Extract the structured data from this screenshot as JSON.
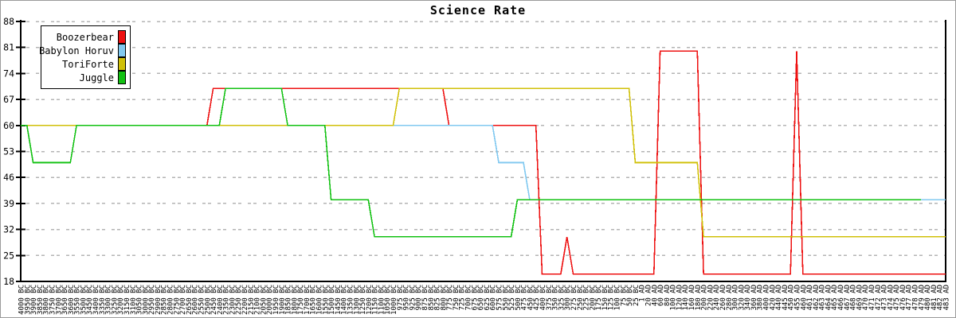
{
  "title": "Science Rate",
  "legend": {
    "items": [
      {
        "name": "Boozerbear",
        "color": "#ee1111"
      },
      {
        "name": "Babylon Horuv",
        "color": "#82c9f0"
      },
      {
        "name": "ToriForte",
        "color": "#d0c008"
      },
      {
        "name": "Juggle",
        "color": "#12c112"
      }
    ]
  },
  "colors": {
    "grid": "#b4b4b4",
    "axis": "#000000",
    "background": "#ffffff",
    "frame_border": "#9a9a9a"
  },
  "chart_data": {
    "type": "line",
    "title": "Science Rate",
    "xlabel": "",
    "ylabel": "",
    "ylim": [
      18,
      88
    ],
    "yticks": [
      18,
      25,
      32,
      39,
      46,
      53,
      60,
      67,
      74,
      81,
      88
    ],
    "grid": "horizontal-dashed",
    "legend_position": "top-left",
    "x_label_rotation": -90,
    "x_labels": [
      "4000 BC",
      "3950 BC",
      "3900 BC",
      "3850 BC",
      "3800 BC",
      "3750 BC",
      "3700 BC",
      "3650 BC",
      "3600 BC",
      "3550 BC",
      "3500 BC",
      "3450 BC",
      "3400 BC",
      "3350 BC",
      "3300 BC",
      "3250 BC",
      "3200 BC",
      "3150 BC",
      "3100 BC",
      "3050 BC",
      "3000 BC",
      "2950 BC",
      "2900 BC",
      "2850 BC",
      "2800 BC",
      "2750 BC",
      "2700 BC",
      "2650 BC",
      "2600 BC",
      "2550 BC",
      "2500 BC",
      "2450 BC",
      "2400 BC",
      "2350 BC",
      "2300 BC",
      "2250 BC",
      "2200 BC",
      "2150 BC",
      "2100 BC",
      "2050 BC",
      "2000 BC",
      "1950 BC",
      "1900 BC",
      "1850 BC",
      "1800 BC",
      "1750 BC",
      "1700 BC",
      "1650 BC",
      "1600 BC",
      "1550 BC",
      "1500 BC",
      "1450 BC",
      "1400 BC",
      "1350 BC",
      "1300 BC",
      "1250 BC",
      "1200 BC",
      "1150 BC",
      "1100 BC",
      "1050 BC",
      "1000 BC",
      "975 BC",
      "950 BC",
      "925 BC",
      "900 BC",
      "875 BC",
      "850 BC",
      "825 BC",
      "800 BC",
      "775 BC",
      "750 BC",
      "725 BC",
      "700 BC",
      "675 BC",
      "650 BC",
      "625 BC",
      "600 BC",
      "575 BC",
      "550 BC",
      "525 BC",
      "500 BC",
      "475 BC",
      "450 BC",
      "425 BC",
      "400 BC",
      "375 BC",
      "350 BC",
      "325 BC",
      "300 BC",
      "275 BC",
      "250 BC",
      "225 BC",
      "200 BC",
      "175 BC",
      "150 BC",
      "125 BC",
      "100 BC",
      "75 BC",
      "50 BC",
      "25 BC",
      "1 AD",
      "20 AD",
      "40 AD",
      "60 AD",
      "80 AD",
      "100 AD",
      "120 AD",
      "140 AD",
      "160 AD",
      "180 AD",
      "200 AD",
      "220 AD",
      "240 AD",
      "260 AD",
      "280 AD",
      "300 AD",
      "320 AD",
      "340 AD",
      "360 AD",
      "380 AD",
      "400 AD",
      "420 AD",
      "440 AD",
      "445 AD",
      "450 AD",
      "455 AD",
      "460 AD",
      "461 AD",
      "462 AD",
      "463 AD",
      "464 AD",
      "465 AD",
      "466 AD",
      "467 AD",
      "468 AD",
      "469 AD",
      "470 AD",
      "471 AD",
      "472 AD",
      "473 AD",
      "474 AD",
      "475 AD",
      "476 AD",
      "477 AD",
      "478 AD",
      "479 AD",
      "480 AD",
      "481 AD",
      "482 AD",
      "483 AD"
    ],
    "series": [
      {
        "name": "Boozerbear",
        "color": "#ee1111",
        "breakpoints": [
          [
            0,
            60
          ],
          [
            31,
            70
          ],
          [
            69,
            60
          ],
          [
            84,
            20
          ],
          [
            88,
            30
          ],
          [
            89,
            20
          ],
          [
            103,
            80
          ],
          [
            110,
            20
          ],
          [
            125,
            80
          ],
          [
            126,
            20
          ],
          [
            149,
            20
          ]
        ]
      },
      {
        "name": "Babylon Horuv",
        "color": "#82c9f0",
        "breakpoints": [
          [
            0,
            60
          ],
          [
            77,
            50
          ],
          [
            82,
            40
          ],
          [
            149,
            40
          ]
        ]
      },
      {
        "name": "ToriForte",
        "color": "#d0c008",
        "breakpoints": [
          [
            0,
            60
          ],
          [
            61,
            70
          ],
          [
            99,
            50
          ],
          [
            110,
            30
          ],
          [
            149,
            30
          ]
        ]
      },
      {
        "name": "Juggle",
        "color": "#12c112",
        "breakpoints": [
          [
            0,
            60
          ],
          [
            2,
            50
          ],
          [
            9,
            60
          ],
          [
            33,
            70
          ],
          [
            43,
            60
          ],
          [
            50,
            40
          ],
          [
            57,
            30
          ],
          [
            80,
            40
          ],
          [
            145,
            40
          ]
        ]
      }
    ]
  }
}
